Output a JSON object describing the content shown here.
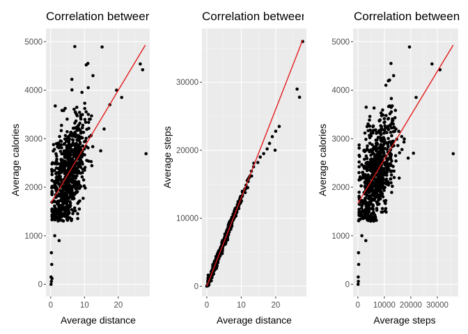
{
  "colors": {
    "panel_background": "#ebebeb",
    "grid_major": "#ffffff",
    "grid_minor": "#f4f4f4",
    "point": "#000000",
    "fit_line": "#e41a1c"
  },
  "chart_data": [
    {
      "type": "scatter",
      "title": "Correlation betweer",
      "xlabel": "Average distance",
      "ylabel": "Average calories",
      "xlim": [
        -1.4,
        29.3
      ],
      "ylim": [
        -250,
        5270
      ],
      "x_ticks": [
        0,
        10,
        20
      ],
      "y_ticks": [
        0,
        1000,
        2000,
        3000,
        4000,
        5000
      ],
      "x_tick_labels": [
        "0",
        "10",
        "20"
      ],
      "y_tick_labels": [
        "0",
        "1000",
        "2000",
        "3000",
        "4000",
        "5000"
      ],
      "grid": true,
      "fit_line": {
        "x0": 0,
        "y0": 1670,
        "x1": 28,
        "y1": 4930
      },
      "generator": {
        "n": 740,
        "seed": 11,
        "x_mode": "distance",
        "slope": 116.4,
        "intercept": 1670,
        "noise": 520
      },
      "points": [
        {
          "x": 0.1,
          "y": 0
        },
        {
          "x": 0.2,
          "y": 60
        },
        {
          "x": 0.1,
          "y": 150
        },
        {
          "x": 0.3,
          "y": 410
        },
        {
          "x": 0.2,
          "y": 650
        },
        {
          "x": 0.4,
          "y": 120
        },
        {
          "x": 2.5,
          "y": 900
        },
        {
          "x": 1.2,
          "y": 1000
        },
        {
          "x": 11.0,
          "y": 4550
        },
        {
          "x": 12.5,
          "y": 4300
        },
        {
          "x": 10.5,
          "y": 4520
        },
        {
          "x": 15.2,
          "y": 4890
        },
        {
          "x": 26.5,
          "y": 4540
        },
        {
          "x": 27.2,
          "y": 4420
        },
        {
          "x": 28.2,
          "y": 2690
        },
        {
          "x": 21.0,
          "y": 3850
        },
        {
          "x": 14.8,
          "y": 2750
        },
        {
          "x": 17.5,
          "y": 3700
        },
        {
          "x": 15.8,
          "y": 3200
        },
        {
          "x": 19.5,
          "y": 4000
        }
      ]
    },
    {
      "type": "scatter",
      "title": "Correlation betweer",
      "xlabel": "Average distance",
      "ylabel": "Average steps",
      "xlim": [
        -1.4,
        28.9
      ],
      "ylim": [
        -1500,
        37900
      ],
      "x_ticks": [
        0,
        10,
        20
      ],
      "y_ticks": [
        0,
        10000,
        20000,
        30000
      ],
      "x_tick_labels": [
        "0",
        "10",
        "20"
      ],
      "y_tick_labels": [
        "0",
        "10000",
        "20000",
        "30000"
      ],
      "grid": true,
      "fit_line": {
        "x0": 0,
        "y0": 0,
        "x1": 27.8,
        "y1": 36200
      },
      "generator": {
        "n": 720,
        "seed": 23,
        "x_mode": "distance",
        "slope": 1300,
        "intercept": 0,
        "noise": 350
      },
      "points": [
        {
          "x": 0,
          "y": 0
        },
        {
          "x": 0.2,
          "y": 150
        },
        {
          "x": 27.8,
          "y": 36000
        },
        {
          "x": 26.2,
          "y": 29000
        },
        {
          "x": 26.9,
          "y": 27800
        },
        {
          "x": 21.0,
          "y": 23500
        },
        {
          "x": 20.0,
          "y": 22800
        },
        {
          "x": 19.0,
          "y": 22000
        },
        {
          "x": 18.2,
          "y": 21000
        },
        {
          "x": 17.5,
          "y": 20200
        },
        {
          "x": 16.5,
          "y": 19500
        },
        {
          "x": 19.8,
          "y": 20000
        },
        {
          "x": 14.8,
          "y": 18200
        },
        {
          "x": 15.5,
          "y": 19000
        },
        {
          "x": 13.0,
          "y": 16200
        },
        {
          "x": 12.0,
          "y": 15400
        }
      ]
    },
    {
      "type": "scatter",
      "title": "Correlation between",
      "xlabel": "Average steps",
      "ylabel": "Average calories",
      "xlim": [
        -1800,
        37900
      ],
      "ylim": [
        -250,
        5270
      ],
      "x_ticks": [
        0,
        10000,
        20000,
        30000
      ],
      "y_ticks": [
        0,
        1000,
        2000,
        3000,
        4000,
        5000
      ],
      "x_tick_labels": [
        "0",
        "10000",
        "20000",
        "30000"
      ],
      "y_tick_labels": [
        "0",
        "1000",
        "2000",
        "3000",
        "4000",
        "5000"
      ],
      "grid": true,
      "fit_line": {
        "x0": 0,
        "y0": 1670,
        "x1": 36000,
        "y1": 4930
      },
      "generator": {
        "n": 740,
        "seed": 37,
        "x_mode": "steps",
        "slope": 0.0906,
        "intercept": 1670,
        "noise": 520
      },
      "points": [
        {
          "x": 100,
          "y": 0
        },
        {
          "x": 200,
          "y": 60
        },
        {
          "x": 150,
          "y": 150
        },
        {
          "x": 300,
          "y": 410
        },
        {
          "x": 250,
          "y": 650
        },
        {
          "x": 3000,
          "y": 900
        },
        {
          "x": 1500,
          "y": 1000
        },
        {
          "x": 12500,
          "y": 4550
        },
        {
          "x": 13500,
          "y": 4300
        },
        {
          "x": 19500,
          "y": 4890
        },
        {
          "x": 28000,
          "y": 4540
        },
        {
          "x": 31000,
          "y": 4420
        },
        {
          "x": 36000,
          "y": 2690
        },
        {
          "x": 22000,
          "y": 3850
        },
        {
          "x": 21000,
          "y": 2700
        },
        {
          "x": 19000,
          "y": 2600
        }
      ]
    }
  ]
}
